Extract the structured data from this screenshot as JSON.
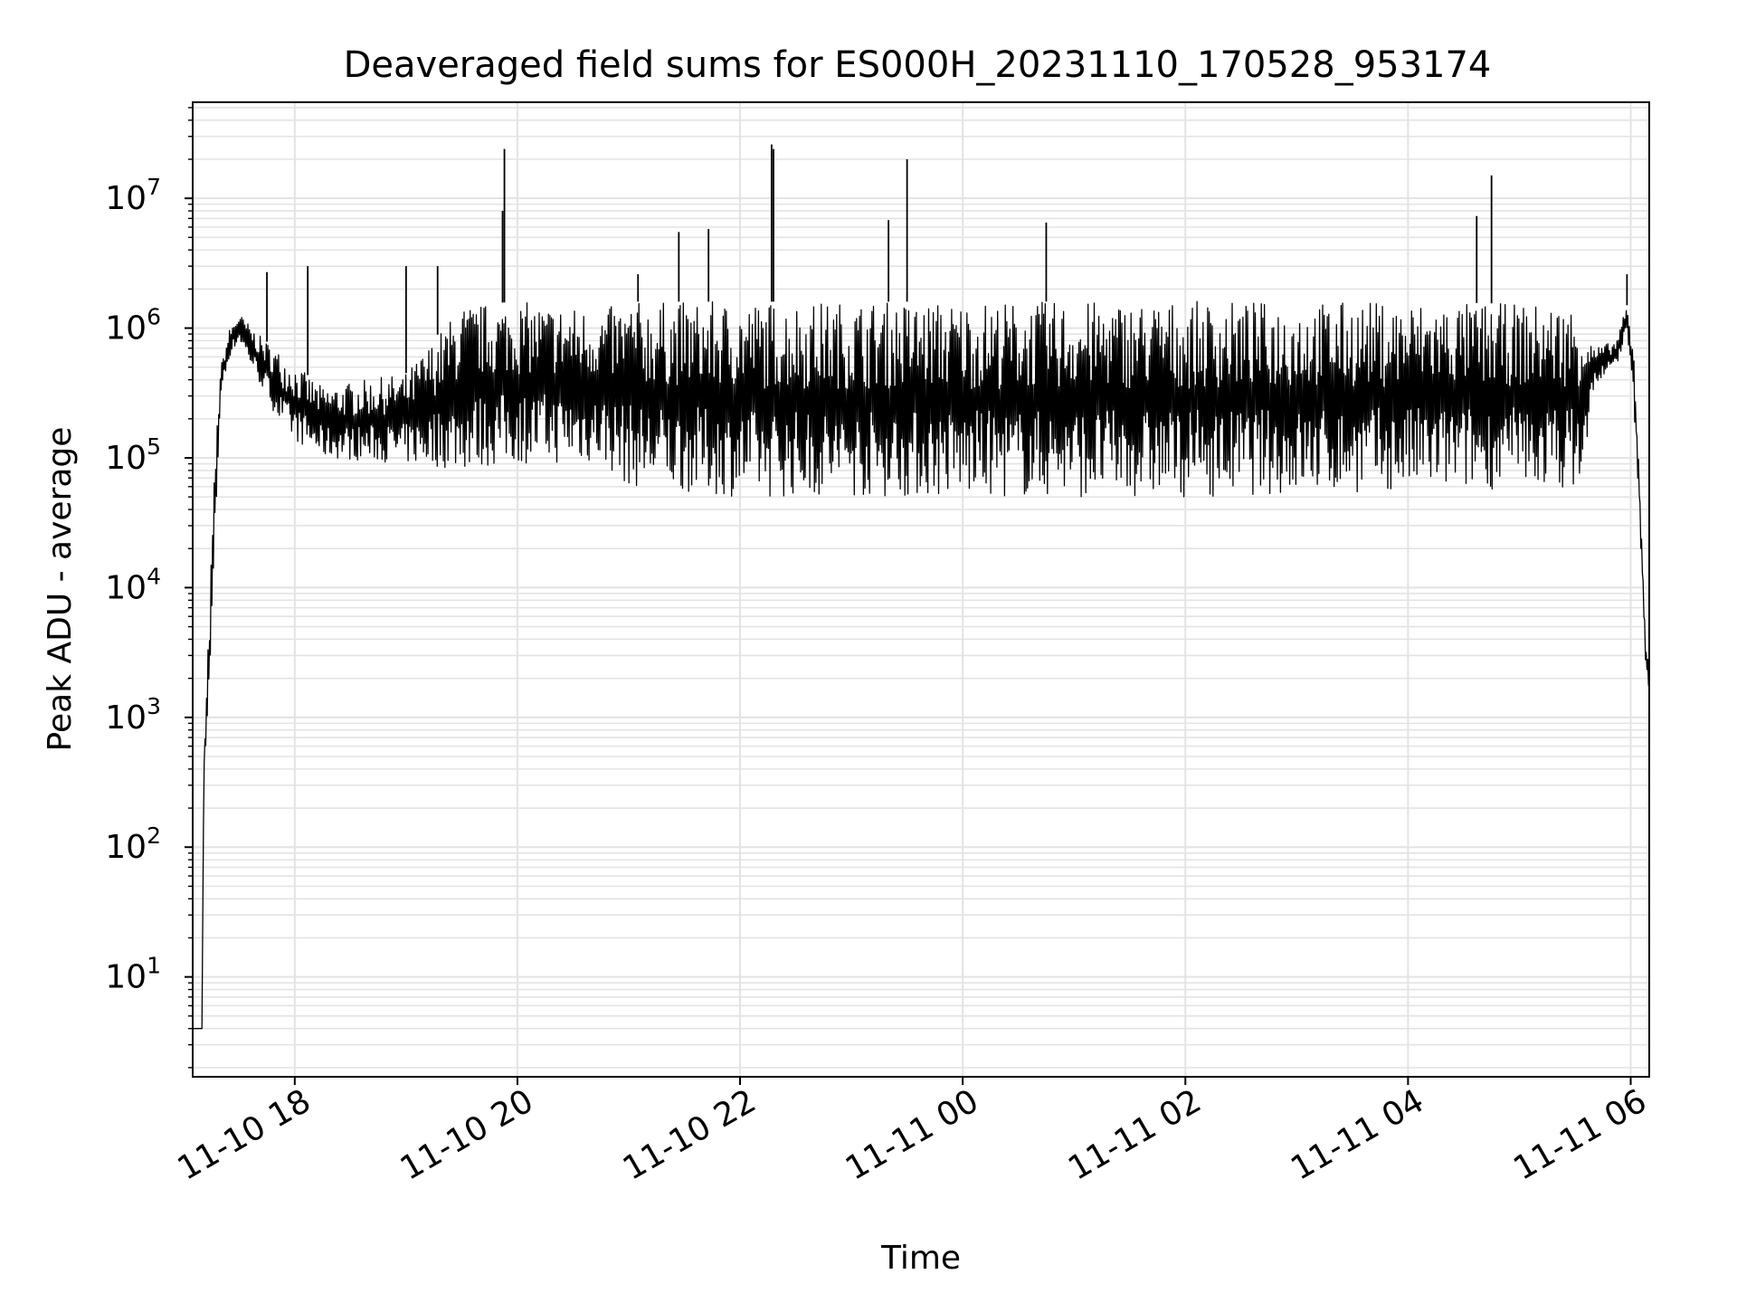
{
  "chart_data": {
    "type": "line",
    "title": "Deaveraged field sums for ES000H_20231110_170528_953174",
    "xlabel": "Time",
    "ylabel": "Peak ADU - average",
    "yscale": "log",
    "grid": true,
    "xlim": [
      "2023-11-10 17:05",
      "2023-11-11 06:10"
    ],
    "ylim": [
      1.7,
      55000000
    ],
    "x_tick_labels": [
      "11-10 18",
      "11-10 20",
      "11-10 22",
      "11-11 00",
      "11-11 02",
      "11-11 04",
      "11-11 06"
    ],
    "x_ticks": [
      "2023-11-10 18:00",
      "2023-11-10 20:00",
      "2023-11-10 22:00",
      "2023-11-11 00:00",
      "2023-11-11 02:00",
      "2023-11-11 04:00",
      "2023-11-11 06:00"
    ],
    "y_ticks": [
      {
        "value": 10,
        "base": "10",
        "exp": "1"
      },
      {
        "value": 100,
        "base": "10",
        "exp": "2"
      },
      {
        "value": 1000,
        "base": "10",
        "exp": "3"
      },
      {
        "value": 10000,
        "base": "10",
        "exp": "4"
      },
      {
        "value": 100000,
        "base": "10",
        "exp": "5"
      },
      {
        "value": 1000000,
        "base": "10",
        "exp": "6"
      },
      {
        "value": 10000000,
        "base": "10",
        "exp": "7"
      }
    ],
    "series": [
      {
        "color": "#000000",
        "envelope": [
          {
            "x": "2023-11-10 17:05",
            "low": 4,
            "high": 4
          },
          {
            "x": "2023-11-10 17:10",
            "low": 4,
            "high": 4
          },
          {
            "x": "2023-11-10 17:11",
            "low": 400,
            "high": 400
          },
          {
            "x": "2023-11-10 17:14",
            "low": 1300,
            "high": 7000
          },
          {
            "x": "2023-11-10 17:17",
            "low": 20000,
            "high": 100000
          },
          {
            "x": "2023-11-10 17:20",
            "low": 300000,
            "high": 500000
          },
          {
            "x": "2023-11-10 17:25",
            "low": 600000,
            "high": 1000000
          },
          {
            "x": "2023-11-10 17:30",
            "low": 800000,
            "high": 1300000
          },
          {
            "x": "2023-11-10 17:40",
            "low": 400000,
            "high": 900000
          },
          {
            "x": "2023-11-10 17:55",
            "low": 150000,
            "high": 600000
          },
          {
            "x": "2023-11-10 18:15",
            "low": 100000,
            "high": 350000
          },
          {
            "x": "2023-11-10 19:00",
            "low": 90000,
            "high": 450000
          },
          {
            "x": "2023-11-10 19:30",
            "low": 80000,
            "high": 1500000
          },
          {
            "x": "2023-11-10 20:00",
            "low": 90000,
            "high": 1600000
          },
          {
            "x": "2023-11-10 20:45",
            "low": 90000,
            "high": 1400000
          },
          {
            "x": "2023-11-10 21:00",
            "low": 60000,
            "high": 1600000
          },
          {
            "x": "2023-11-10 22:00",
            "low": 50000,
            "high": 1600000
          },
          {
            "x": "2023-11-11 00:00",
            "low": 50000,
            "high": 1600000
          },
          {
            "x": "2023-11-11 02:00",
            "low": 50000,
            "high": 1600000
          },
          {
            "x": "2023-11-11 04:00",
            "low": 55000,
            "high": 1600000
          },
          {
            "x": "2023-11-11 05:35",
            "low": 60000,
            "high": 1500000
          },
          {
            "x": "2023-11-11 05:40",
            "low": 350000,
            "high": 700000
          },
          {
            "x": "2023-11-11 05:52",
            "low": 500000,
            "high": 800000
          },
          {
            "x": "2023-11-11 05:58",
            "low": 900000,
            "high": 1500000
          },
          {
            "x": "2023-11-11 06:02",
            "low": 200000,
            "high": 600000
          },
          {
            "x": "2023-11-11 06:05",
            "low": 30000,
            "high": 60000
          },
          {
            "x": "2023-11-11 06:08",
            "low": 2000,
            "high": 5000
          },
          {
            "x": "2023-11-11 06:10",
            "low": 1700,
            "high": 2000
          }
        ],
        "spikes": [
          {
            "x": "2023-11-10 17:45",
            "y": 2700000
          },
          {
            "x": "2023-11-10 18:07",
            "y": 3000000
          },
          {
            "x": "2023-11-10 19:00",
            "y": 3000000
          },
          {
            "x": "2023-11-10 19:17",
            "y": 3000000
          },
          {
            "x": "2023-11-10 19:52",
            "y": 8000000
          },
          {
            "x": "2023-11-10 19:53",
            "y": 24000000
          },
          {
            "x": "2023-11-10 21:05",
            "y": 2600000
          },
          {
            "x": "2023-11-10 21:27",
            "y": 5500000
          },
          {
            "x": "2023-11-10 21:43",
            "y": 5800000
          },
          {
            "x": "2023-11-10 22:17",
            "y": 26000000
          },
          {
            "x": "2023-11-10 22:18",
            "y": 24000000
          },
          {
            "x": "2023-11-10 23:20",
            "y": 6800000
          },
          {
            "x": "2023-11-10 23:30",
            "y": 20000000
          },
          {
            "x": "2023-11-11 00:45",
            "y": 6500000
          },
          {
            "x": "2023-11-11 04:37",
            "y": 7300000
          },
          {
            "x": "2023-11-11 04:45",
            "y": 15000000
          },
          {
            "x": "2023-11-11 05:58",
            "y": 2600000
          }
        ]
      }
    ]
  }
}
